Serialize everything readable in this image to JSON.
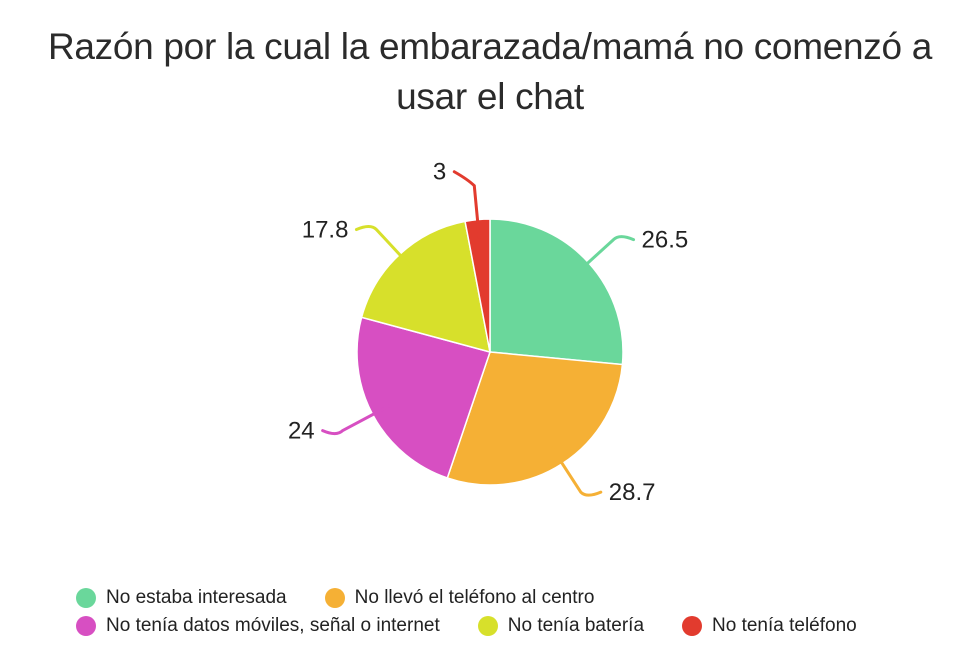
{
  "chart_data": {
    "type": "pie",
    "title": "Razón por la cual la embarazada/mamá no comenzó a usar el chat",
    "categories": [
      "No estaba interesada",
      "No llevó el teléfono al centro",
      "No tenía datos móviles, señal o internet",
      "No tenía batería",
      "No tenía teléfono"
    ],
    "values": [
      26.5,
      28.7,
      24,
      17.8,
      3
    ],
    "labels": [
      "26.5",
      "28.7",
      "24",
      "17.8",
      "3"
    ],
    "colors": [
      "#6ad79b",
      "#f5b035",
      "#d74fc2",
      "#d7e02b",
      "#e23b2e"
    ],
    "legend_position": "bottom",
    "start_angle": "top, clockwise"
  },
  "legend": {
    "rows": [
      [
        {
          "label": "No estaba interesada",
          "color": "#6ad79b"
        },
        {
          "label": "No llevó el teléfono al centro",
          "color": "#f5b035"
        }
      ],
      [
        {
          "label": "No tenía datos móviles, señal o internet",
          "color": "#d74fc2"
        },
        {
          "label": "No tenía batería",
          "color": "#d7e02b"
        },
        {
          "label": "No tenía teléfono",
          "color": "#e23b2e"
        }
      ]
    ]
  }
}
